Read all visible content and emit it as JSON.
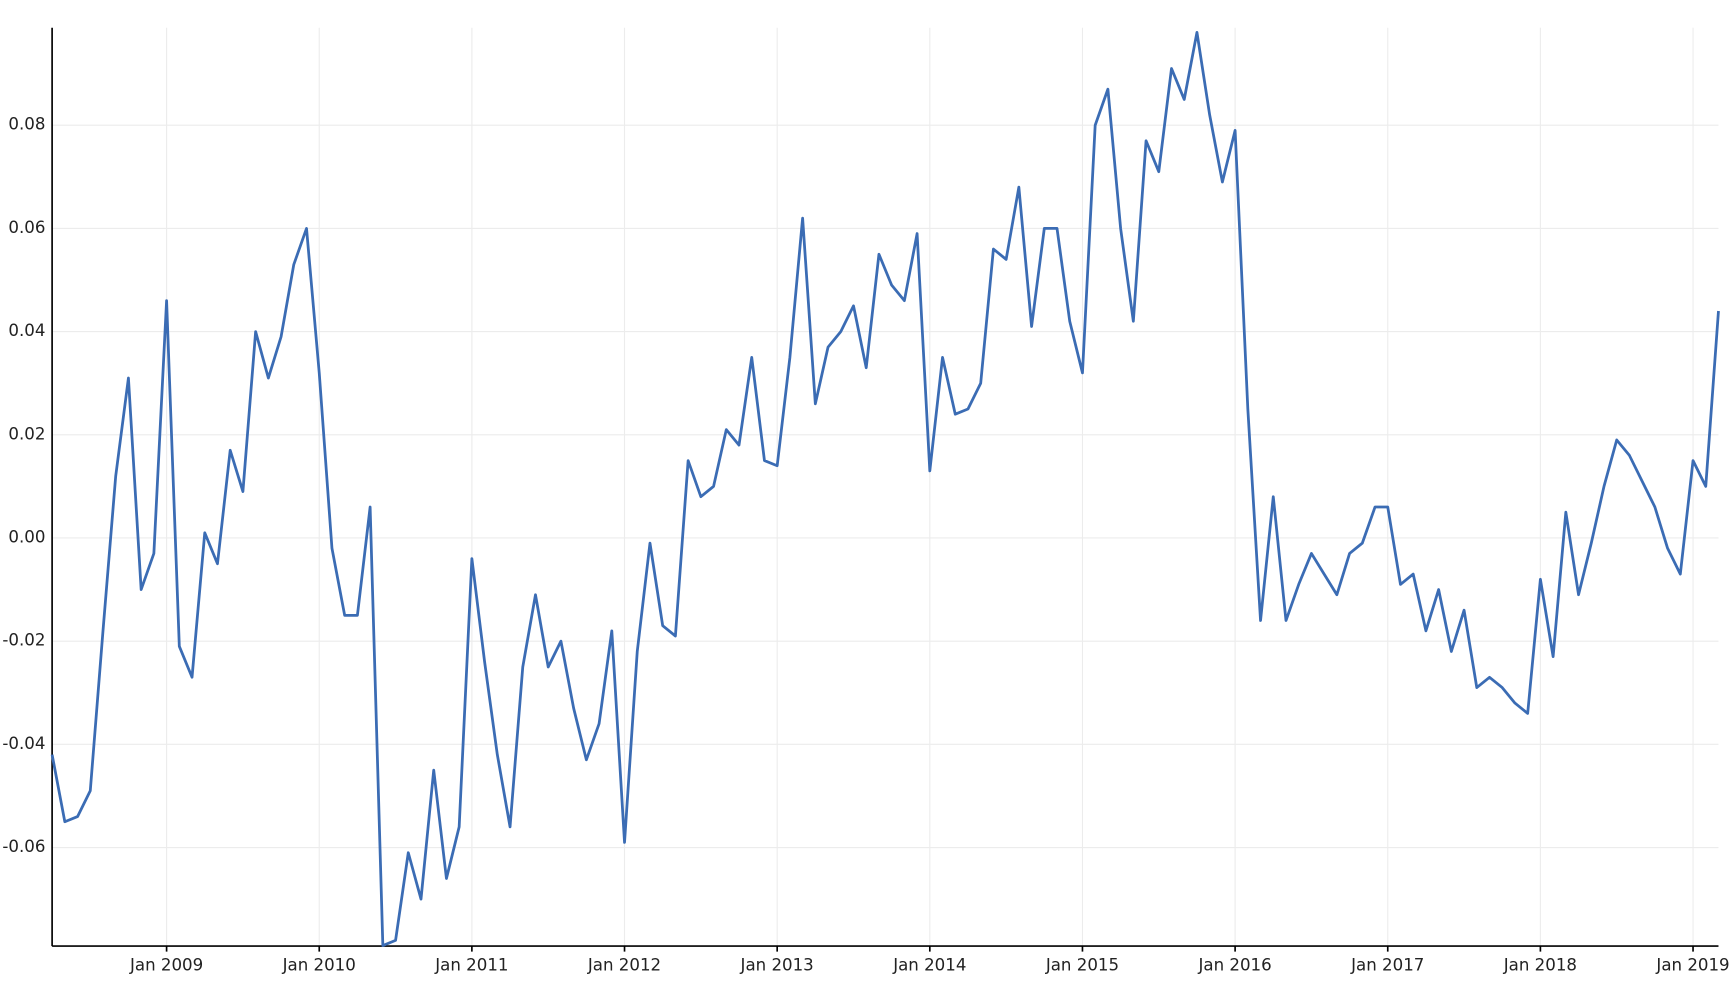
{
  "chart_data": {
    "type": "line",
    "x": [
      "2008-04",
      "2008-05",
      "2008-06",
      "2008-07",
      "2008-08",
      "2008-09",
      "2008-10",
      "2008-11",
      "2008-12",
      "2009-01",
      "2009-02",
      "2009-03",
      "2009-04",
      "2009-05",
      "2009-06",
      "2009-07",
      "2009-08",
      "2009-09",
      "2009-10",
      "2009-11",
      "2009-12",
      "2010-01",
      "2010-02",
      "2010-03",
      "2010-04",
      "2010-05",
      "2010-06",
      "2010-07",
      "2010-08",
      "2010-09",
      "2010-10",
      "2010-11",
      "2010-12",
      "2011-01",
      "2011-02",
      "2011-03",
      "2011-04",
      "2011-05",
      "2011-06",
      "2011-07",
      "2011-08",
      "2011-09",
      "2011-10",
      "2011-11",
      "2011-12",
      "2012-01",
      "2012-02",
      "2012-03",
      "2012-04",
      "2012-05",
      "2012-06",
      "2012-07",
      "2012-08",
      "2012-09",
      "2012-10",
      "2012-11",
      "2012-12",
      "2013-01",
      "2013-02",
      "2013-03",
      "2013-04",
      "2013-05",
      "2013-06",
      "2013-07",
      "2013-08",
      "2013-09",
      "2013-10",
      "2013-11",
      "2013-12",
      "2014-01",
      "2014-02",
      "2014-03",
      "2014-04",
      "2014-05",
      "2014-06",
      "2014-07",
      "2014-08",
      "2014-09",
      "2014-10",
      "2014-11",
      "2014-12",
      "2015-01",
      "2015-02",
      "2015-03",
      "2015-04",
      "2015-05",
      "2015-06",
      "2015-07",
      "2015-08",
      "2015-09",
      "2015-10",
      "2015-11",
      "2015-12",
      "2016-01",
      "2016-02",
      "2016-03",
      "2016-04",
      "2016-05",
      "2016-06",
      "2016-07",
      "2016-08",
      "2016-09",
      "2016-10",
      "2016-11",
      "2016-12",
      "2017-01",
      "2017-02",
      "2017-03",
      "2017-04",
      "2017-05",
      "2017-06",
      "2017-07",
      "2017-08",
      "2017-09",
      "2017-10",
      "2017-11",
      "2017-12",
      "2018-01",
      "2018-02",
      "2018-03",
      "2018-04",
      "2018-05",
      "2018-06",
      "2018-07",
      "2018-08",
      "2018-09",
      "2018-10",
      "2018-11",
      "2018-12",
      "2019-01",
      "2019-02",
      "2019-03"
    ],
    "series": [
      {
        "color": "#3b6cb4",
        "values": [
          -0.042,
          -0.055,
          -0.054,
          -0.049,
          -0.018,
          0.012,
          0.031,
          -0.01,
          -0.003,
          0.046,
          -0.021,
          -0.027,
          0.001,
          -0.005,
          0.017,
          0.009,
          0.04,
          0.031,
          0.039,
          0.053,
          0.06,
          0.032,
          -0.002,
          -0.015,
          -0.015,
          0.006,
          -0.079,
          -0.078,
          -0.061,
          -0.07,
          -0.045,
          -0.066,
          -0.056,
          -0.004,
          -0.024,
          -0.042,
          -0.056,
          -0.025,
          -0.011,
          -0.025,
          -0.02,
          -0.033,
          -0.043,
          -0.036,
          -0.018,
          -0.059,
          -0.022,
          -0.001,
          -0.017,
          -0.019,
          0.015,
          0.008,
          0.01,
          0.021,
          0.018,
          0.035,
          0.015,
          0.014,
          0.035,
          0.062,
          0.026,
          0.037,
          0.04,
          0.045,
          0.033,
          0.055,
          0.049,
          0.046,
          0.059,
          0.013,
          0.035,
          0.024,
          0.025,
          0.03,
          0.056,
          0.054,
          0.068,
          0.041,
          0.06,
          0.06,
          0.042,
          0.032,
          0.08,
          0.087,
          0.06,
          0.042,
          0.077,
          0.071,
          0.091,
          0.085,
          0.098,
          0.082,
          0.069,
          0.079,
          0.025,
          -0.016,
          0.008,
          -0.016,
          -0.009,
          -0.003,
          -0.007,
          -0.011,
          -0.003,
          -0.001,
          0.006,
          0.006,
          -0.009,
          -0.007,
          -0.018,
          -0.01,
          -0.022,
          -0.014,
          -0.029,
          -0.027,
          -0.029,
          -0.032,
          -0.034,
          -0.008,
          -0.023,
          0.005,
          -0.011,
          -0.001,
          0.01,
          0.019,
          0.016,
          0.011,
          0.006,
          -0.002,
          -0.007,
          0.015,
          0.01,
          0.044
        ]
      }
    ],
    "xlim": [
      "2008-04",
      "2019-03"
    ],
    "xticks": [
      {
        "value": "2009-01",
        "label": "Jan 2009"
      },
      {
        "value": "2010-01",
        "label": "Jan 2010"
      },
      {
        "value": "2011-01",
        "label": "Jan 2011"
      },
      {
        "value": "2012-01",
        "label": "Jan 2012"
      },
      {
        "value": "2013-01",
        "label": "Jan 2013"
      },
      {
        "value": "2014-01",
        "label": "Jan 2014"
      },
      {
        "value": "2015-01",
        "label": "Jan 2015"
      },
      {
        "value": "2016-01",
        "label": "Jan 2016"
      },
      {
        "value": "2017-01",
        "label": "Jan 2017"
      },
      {
        "value": "2018-01",
        "label": "Jan 2018"
      },
      {
        "value": "2019-01",
        "label": "Jan 2019"
      }
    ],
    "ylim": [
      -0.0791,
      0.0989
    ],
    "yticks": [
      -0.06,
      -0.04,
      -0.02,
      {
        "value": 0,
        "label": "0.00"
      },
      0.02,
      0.04,
      0.06,
      0.08
    ],
    "grid": true
  }
}
